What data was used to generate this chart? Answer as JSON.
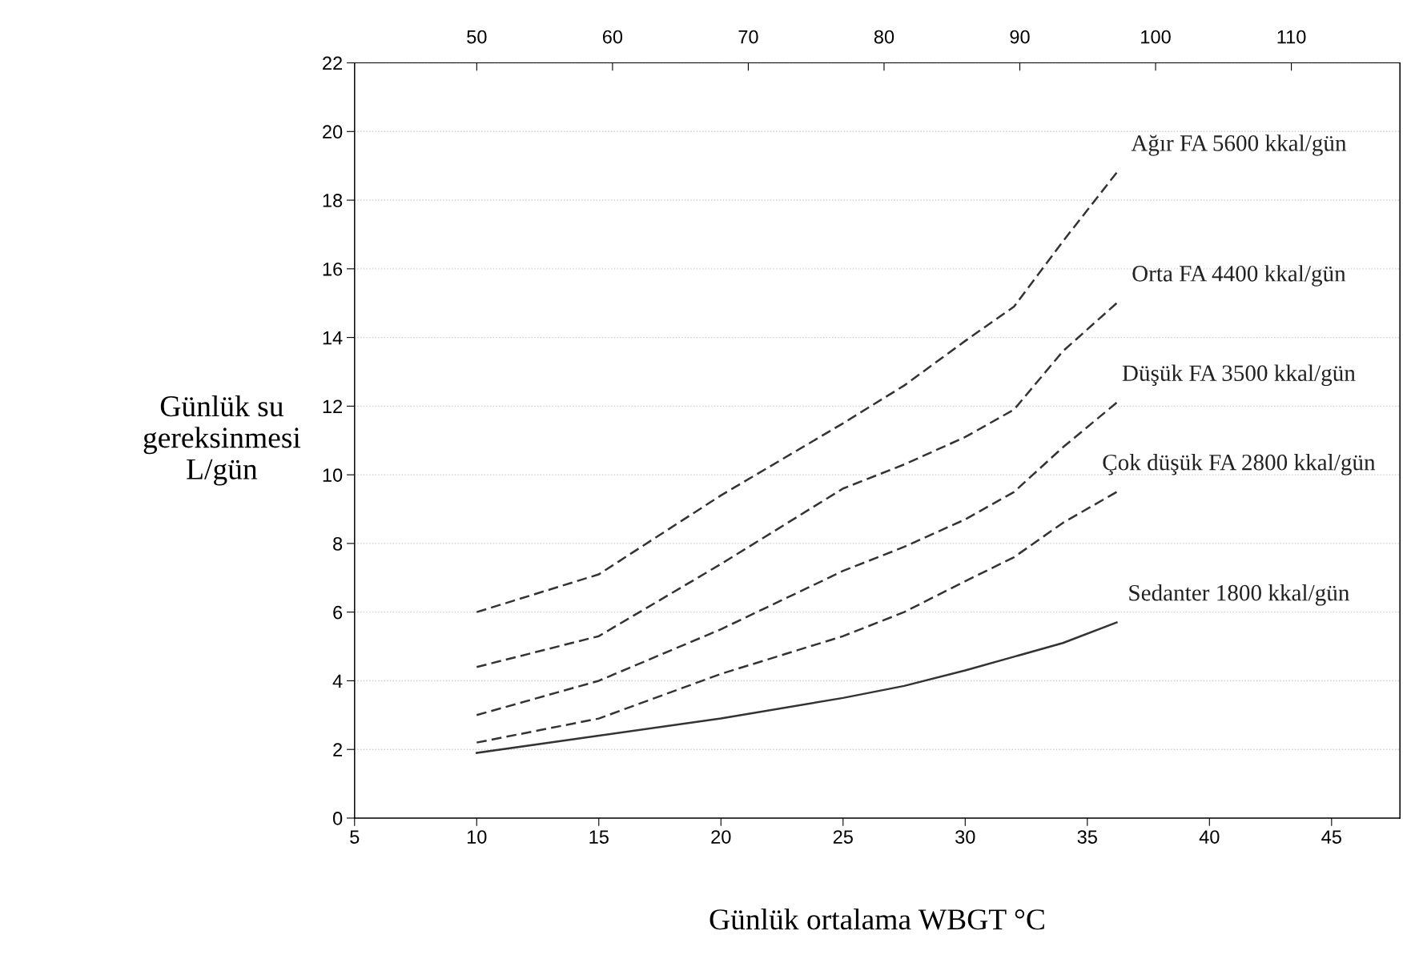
{
  "chart_data": {
    "type": "line",
    "xlabel": "Günlük ortalama WBGT °C",
    "ylabel": "Günlük su\ngereksinmesi\nL/gün",
    "x": [
      10,
      15,
      20,
      25,
      27.5,
      30,
      32,
      34,
      36.2
    ],
    "series": [
      {
        "name": "Ağır FA 5600 kkal/gün",
        "color": "#333333",
        "line_style": "dashed",
        "values": [
          6.0,
          7.1,
          9.4,
          11.5,
          12.6,
          13.9,
          14.9,
          16.8,
          18.8
        ]
      },
      {
        "name": "Orta FA 4400 kkal/gün",
        "color": "#333333",
        "line_style": "dashed",
        "values": [
          4.4,
          5.3,
          7.4,
          9.6,
          10.3,
          11.1,
          11.9,
          13.6,
          15.0
        ]
      },
      {
        "name": "Düşük FA 3500 kkal/gün",
        "color": "#333333",
        "line_style": "dashed",
        "values": [
          3.0,
          4.0,
          5.5,
          7.2,
          7.9,
          8.7,
          9.5,
          10.8,
          12.1
        ]
      },
      {
        "name": "Çok düşük FA 2800 kkal/gün",
        "color": "#333333",
        "line_style": "dashed",
        "values": [
          2.2,
          2.9,
          4.2,
          5.3,
          6.0,
          6.9,
          7.6,
          8.6,
          9.5
        ]
      },
      {
        "name": "Sedanter 1800 kkal/gün",
        "color": "#333333",
        "line_style": "solid",
        "values": [
          1.9,
          2.4,
          2.9,
          3.5,
          3.85,
          4.3,
          4.7,
          5.1,
          5.7
        ]
      }
    ],
    "xlim": [
      5,
      47.8
    ],
    "xticks": [
      5,
      10,
      15,
      20,
      25,
      30,
      35,
      40,
      45
    ],
    "ylim": [
      0,
      22
    ],
    "yticks": [
      0,
      2,
      4,
      6,
      8,
      10,
      12,
      14,
      16,
      18,
      20,
      22
    ],
    "x2lim": [
      41,
      118.0
    ],
    "x2ticks": [
      50,
      60,
      70,
      80,
      90,
      100,
      110
    ],
    "grid": "y",
    "legend": false
  }
}
